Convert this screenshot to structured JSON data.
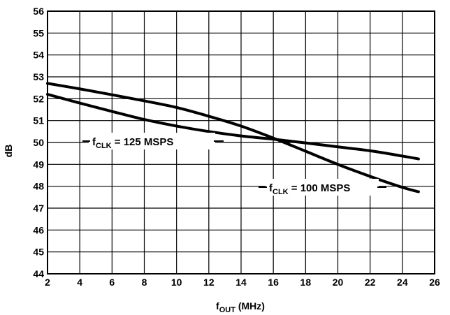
{
  "chart_data": {
    "type": "line",
    "xlabel": {
      "main": "f",
      "sub": "OUT",
      "unit": " (MHz)"
    },
    "ylabel": "dB",
    "xlim": [
      2,
      26
    ],
    "ylim": [
      44,
      56
    ],
    "xticks": [
      "2",
      "4",
      "6",
      "8",
      "10",
      "12",
      "14",
      "16",
      "18",
      "20",
      "22",
      "24",
      "26"
    ],
    "yticks": [
      "44",
      "45",
      "46",
      "47",
      "48",
      "49",
      "50",
      "51",
      "52",
      "53",
      "54",
      "55",
      "56"
    ],
    "grid": true,
    "series": [
      {
        "name": "fCLK = 100 MSPS",
        "label": {
          "main": "f",
          "sub": "CLK",
          "rest": " = 100 MSPS"
        },
        "x": [
          2,
          4,
          6,
          8,
          10,
          12,
          14,
          16,
          18,
          20,
          22,
          24,
          25
        ],
        "y": [
          52.7,
          52.45,
          52.18,
          51.9,
          51.6,
          51.2,
          50.75,
          50.2,
          49.6,
          49.0,
          48.45,
          47.95,
          47.75
        ]
      },
      {
        "name": "fCLK = 125 MSPS",
        "label": {
          "main": "f",
          "sub": "CLK",
          "rest": " = 125 MSPS"
        },
        "x": [
          2,
          4,
          6,
          8,
          10,
          12,
          14,
          16,
          18,
          20,
          22,
          24,
          25
        ],
        "y": [
          52.2,
          51.8,
          51.42,
          51.05,
          50.75,
          50.5,
          50.3,
          50.15,
          49.98,
          49.8,
          49.62,
          49.38,
          49.25
        ]
      }
    ]
  }
}
